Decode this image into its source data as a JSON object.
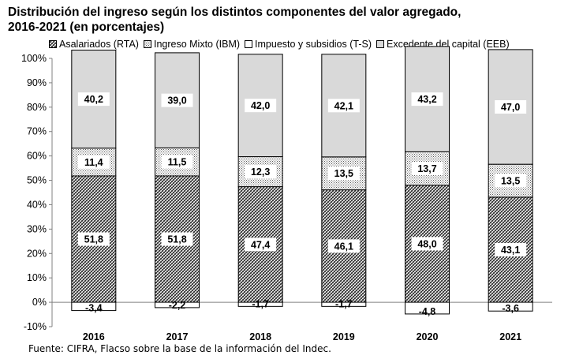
{
  "chart_data": {
    "type": "bar",
    "stacked": true,
    "title_line1": "Distribución del ingreso según los distintos componentes del valor agregado,",
    "title_line2": "2016-2021 (en porcentajes)",
    "categories": [
      "2016",
      "2017",
      "2018",
      "2019",
      "2020",
      "2021"
    ],
    "series": [
      {
        "name": "Asalariados (RTA)",
        "values": [
          51.8,
          51.8,
          47.4,
          46.1,
          48.0,
          43.1
        ],
        "labels": [
          "51,8",
          "51,8",
          "47,4",
          "46,1",
          "48,0",
          "43,1"
        ],
        "pattern": "diagonal-hatch"
      },
      {
        "name": "Ingreso Mixto (IBM)",
        "values": [
          11.4,
          11.5,
          12.3,
          13.5,
          13.7,
          13.5
        ],
        "labels": [
          "11,4",
          "11,5",
          "12,3",
          "13,5",
          "13,7",
          "13,5"
        ],
        "pattern": "dots"
      },
      {
        "name": "Impuesto y subsidios (T-S)",
        "values": [
          -3.4,
          -2.2,
          -1.7,
          -1.7,
          -4.8,
          -3.6
        ],
        "labels": [
          "-3,4",
          "-2,2",
          "-1,7",
          "-1,7",
          "-4,8",
          "-3,6"
        ],
        "pattern": "white"
      },
      {
        "name": "Excedente del capital (EEB)",
        "values": [
          40.2,
          39.0,
          42.0,
          42.1,
          43.2,
          47.0
        ],
        "labels": [
          "40,2",
          "39,0",
          "42,0",
          "42,1",
          "43,2",
          "47,0"
        ],
        "pattern": "light-gray"
      }
    ],
    "yticks": [
      "-10%",
      "0%",
      "10%",
      "20%",
      "30%",
      "40%",
      "50%",
      "60%",
      "70%",
      "80%",
      "90%",
      "100%"
    ],
    "ylim": [
      -10,
      100
    ],
    "grid": false,
    "legend_position": "top"
  },
  "source_text": "Fuente: CIFRA, Flacso sobre la base de la información del Indec.",
  "colors": {
    "hatch_fg": "#2b2b2b",
    "hatch_bg": "#ffffff",
    "dots_fg": "#555555",
    "ebb_fill": "#d9d9d9",
    "axis": "#808080",
    "border": "#000000"
  }
}
